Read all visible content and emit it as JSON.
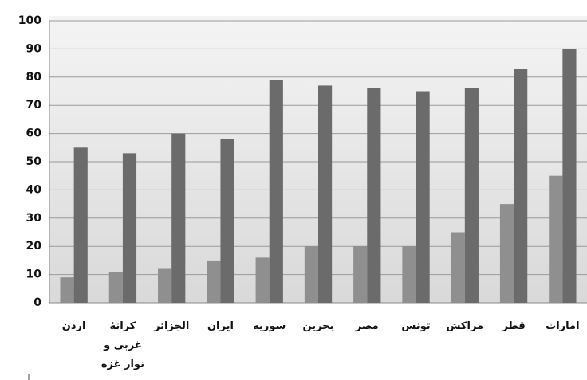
{
  "chart_data": {
    "type": "bar",
    "categories": [
      "اردن",
      "کرانهٔ غربی و نوار غزه",
      "الجزائر",
      "ایران",
      "سوریه",
      "بحرین",
      "مصر",
      "تونس",
      "مراکش",
      "قطر",
      "امارات"
    ],
    "series": [
      {
        "color": "#8f8f8f",
        "values": [
          9,
          11,
          12,
          15,
          16,
          20,
          20,
          20,
          25,
          35,
          45
        ]
      },
      {
        "color": "#6b6b6b",
        "values": [
          55,
          53,
          60,
          58,
          79,
          77,
          76,
          75,
          76,
          83,
          90
        ]
      }
    ],
    "ylim": [
      0,
      100
    ],
    "yticks": [
      0,
      10,
      20,
      30,
      40,
      50,
      60,
      70,
      80,
      90,
      100
    ],
    "grid": true
  }
}
